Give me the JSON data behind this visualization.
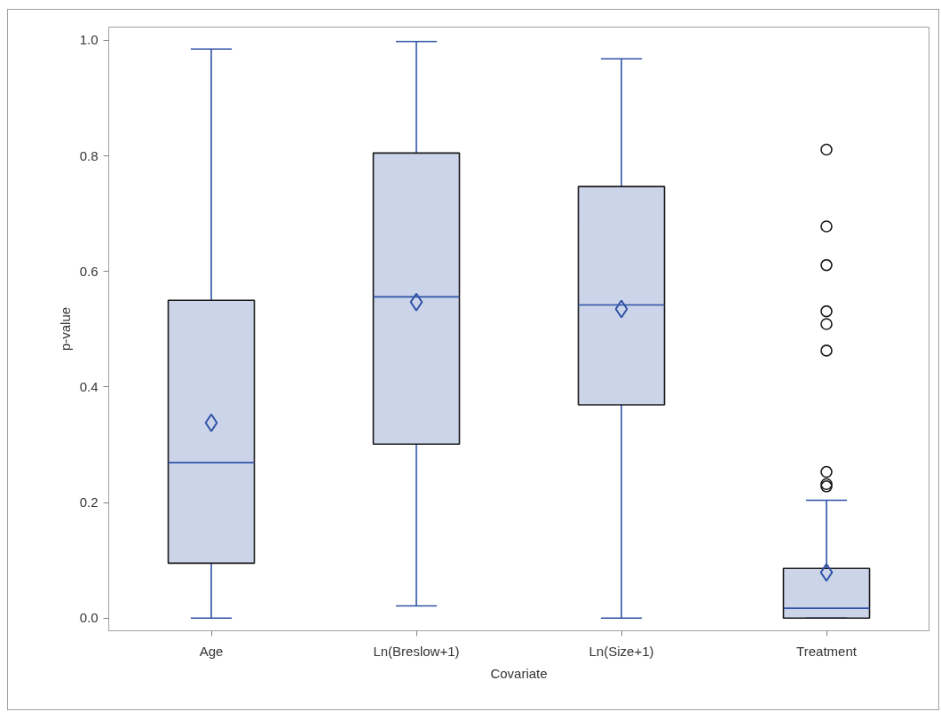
{
  "chart_data": {
    "type": "box",
    "xlabel": "Covariate",
    "ylabel": "p-value",
    "categories": [
      "Age",
      "Ln(Breslow+1)",
      "Ln(Size+1)",
      "Treatment"
    ],
    "series": [
      {
        "color": "#2f52a6",
        "boxes": [
          {
            "low": 0.0,
            "q1": 0.095,
            "median": 0.269,
            "q3": 0.55,
            "high": 0.985,
            "mean": 0.338
          },
          {
            "low": 0.021,
            "q1": 0.301,
            "median": 0.556,
            "q3": 0.805,
            "high": 0.998,
            "mean": 0.547
          },
          {
            "low": 0.0,
            "q1": 0.369,
            "median": 0.542,
            "q3": 0.747,
            "high": 0.968,
            "mean": 0.535
          },
          {
            "low": 0.0,
            "q1": 0.0,
            "median": 0.017,
            "q3": 0.086,
            "high": 0.204,
            "mean": 0.079,
            "outliers": [
              0.811,
              0.678,
              0.611,
              0.531,
              0.509,
              0.463,
              0.253,
              0.232,
              0.228
            ]
          }
        ]
      }
    ],
    "ylim": [
      -0.022,
      1.023
    ],
    "yticks": [
      {
        "value": 0,
        "label": "0.0"
      },
      0.2,
      0.4,
      0.6,
      0.8,
      {
        "value": 1,
        "label": "1.0"
      }
    ],
    "grid": false
  }
}
